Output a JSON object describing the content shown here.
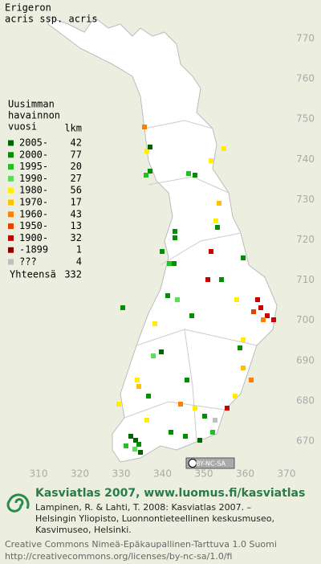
{
  "title": "Erigeron",
  "subtitle": "acris ssp. acris",
  "y_axis": {
    "ticks": [
      770,
      760,
      750,
      740,
      730,
      720,
      710,
      700,
      690,
      680,
      670
    ],
    "lim": [
      770,
      670
    ]
  },
  "x_axis": {
    "ticks": [
      310,
      320,
      330,
      340,
      350,
      360,
      370
    ],
    "lim": [
      310,
      370
    ]
  },
  "legend": {
    "header": [
      "Uusimman",
      "havainnon",
      "vuosi"
    ],
    "count_header": "lkm",
    "rows": [
      {
        "label": "2005-",
        "count": 42,
        "color": "#006400"
      },
      {
        "label": "2000-",
        "count": 77,
        "color": "#009000"
      },
      {
        "label": "1995-",
        "count": 20,
        "color": "#22c022"
      },
      {
        "label": "1990-",
        "count": 27,
        "color": "#55e055"
      },
      {
        "label": "1980-",
        "count": 56,
        "color": "#ffee00"
      },
      {
        "label": "1970-",
        "count": 17,
        "color": "#ffc000"
      },
      {
        "label": "1960-",
        "count": 43,
        "color": "#ff8000"
      },
      {
        "label": "1950-",
        "count": 13,
        "color": "#e84000"
      },
      {
        "label": "1900-",
        "count": 32,
        "color": "#cc0000"
      },
      {
        "label": "-1899",
        "count": 1,
        "color": "#880000"
      },
      {
        "label": "???",
        "count": 4,
        "color": "#c0c0c0"
      }
    ],
    "total_label": "Yhteensä",
    "total": 332
  },
  "license_badge": "BY-NC-SA",
  "footer": {
    "heading": "Kasviatlas 2007, www.luomus.fi/kasviatlas",
    "citation": [
      "Lampinen, R. & Lahti, T. 2008: Kasviatlas 2007. –",
      "Helsingin Yliopisto, Luonnontieteellinen keskusmuseo,",
      "Kasvimuseo, Helsinki."
    ],
    "license": [
      "Creative Commons Nimeä-Epäkaupallinen-Tarttuva 1.0 Suomi",
      "http://creativecommons.org/licenses/by-nc-sa/1.0/fi"
    ]
  }
}
